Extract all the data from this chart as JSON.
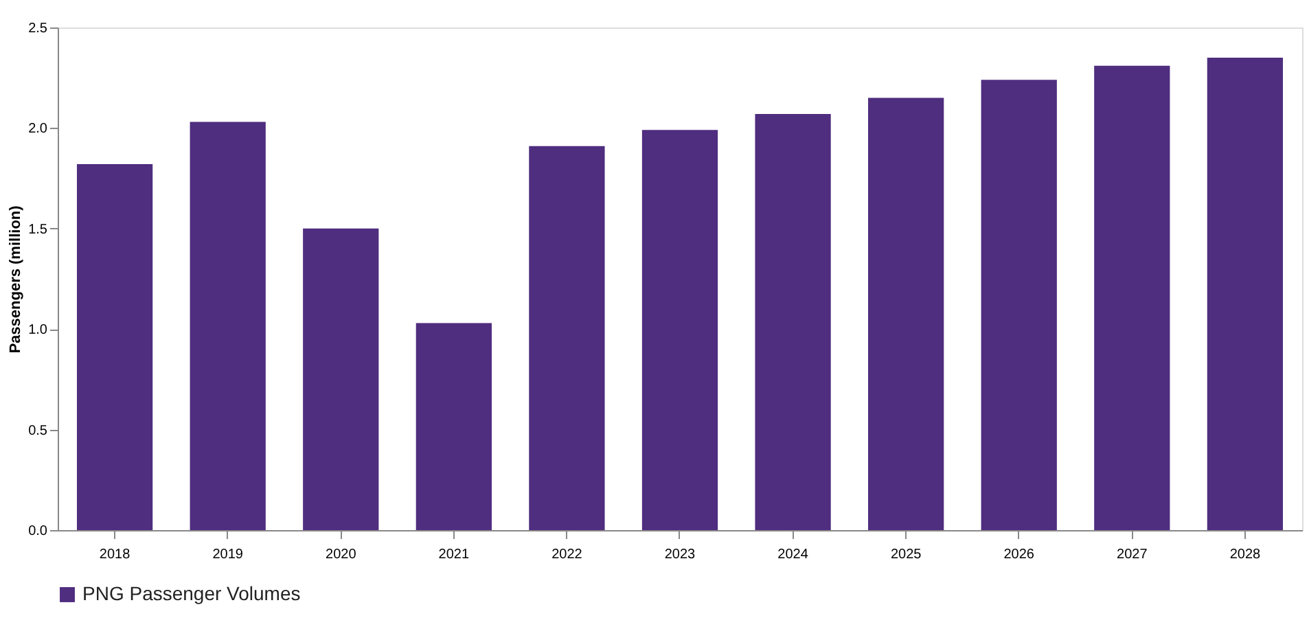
{
  "chart_data": {
    "type": "bar",
    "ylabel": "Passengers (million)",
    "categories": [
      "2018",
      "2019",
      "2020",
      "2021",
      "2022",
      "2023",
      "2024",
      "2025",
      "2026",
      "2027",
      "2028"
    ],
    "series": [
      {
        "name": "PNG Passenger Volumes",
        "color": "#4f2d7f",
        "values": [
          1.82,
          2.03,
          1.5,
          1.03,
          1.91,
          1.99,
          2.07,
          2.15,
          2.24,
          2.31,
          2.35
        ]
      }
    ],
    "ylim": [
      0,
      2.5
    ],
    "yticks": [
      {
        "value": 0,
        "label": "0.0"
      },
      0.5,
      {
        "value": 1,
        "label": "1.0"
      },
      1.5,
      {
        "value": 2,
        "label": "2.0"
      },
      2.5
    ],
    "grid": false,
    "legend": "bottom"
  }
}
